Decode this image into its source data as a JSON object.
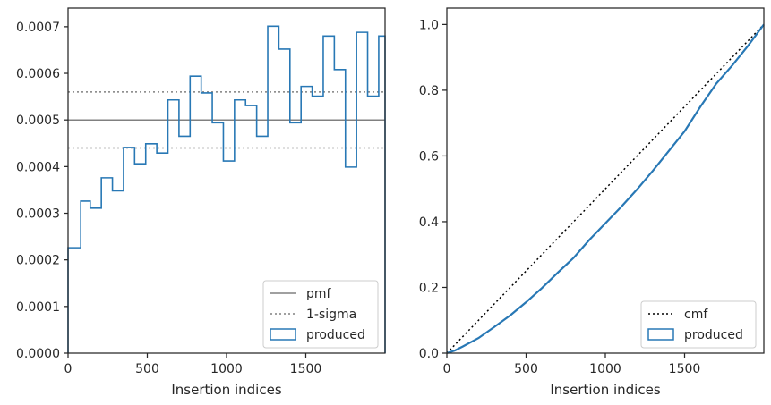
{
  "chart_data": [
    {
      "type": "step",
      "xlabel": "Insertion indices",
      "ylabel": "",
      "xlim": [
        0,
        2000
      ],
      "ylim": [
        0,
        0.00074
      ],
      "xticks": [
        0,
        500,
        1000,
        1500
      ],
      "xtick_labels": [
        "0",
        "500",
        "1000",
        "1500"
      ],
      "yticks": [
        0,
        0.0001,
        0.0002,
        0.0003,
        0.0004,
        0.0005,
        0.0006,
        0.0007
      ],
      "ytick_labels": [
        "0.0000",
        "0.0001",
        "0.0002",
        "0.0003",
        "0.0004",
        "0.0005",
        "0.0006",
        "0.0007"
      ],
      "bin_edges": [
        0,
        80,
        140,
        210,
        280,
        350,
        420,
        490,
        560,
        630,
        700,
        770,
        840,
        910,
        980,
        1050,
        1120,
        1190,
        1260,
        1330,
        1400,
        1470,
        1540,
        1610,
        1680,
        1750,
        1820,
        1890,
        1960,
        2000
      ],
      "series": [
        {
          "name": "produced",
          "kind": "histogram-step",
          "color": "#2878b5",
          "values": [
            0.000226,
            0.000326,
            0.000311,
            0.000376,
            0.000348,
            0.000441,
            0.000406,
            0.000449,
            0.000429,
            0.000543,
            0.000465,
            0.000594,
            0.000558,
            0.000494,
            0.000412,
            0.000543,
            0.000531,
            0.000465,
            0.000701,
            0.000652,
            0.000494,
            0.000572,
            0.000551,
            0.00068,
            0.000608,
            0.000399,
            0.000688,
            0.000551,
            0.00068
          ]
        }
      ],
      "reference_lines": [
        {
          "name": "pmf",
          "y": 0.0005,
          "style": "solid",
          "color": "#808080"
        },
        {
          "name": "1-sigma",
          "y": 0.00056,
          "style": "dotted",
          "color": "#808080"
        },
        {
          "name": "",
          "y": 0.00044,
          "style": "dotted",
          "color": "#808080"
        }
      ],
      "legend": {
        "position": "lower-right",
        "entries": [
          "pmf",
          "1-sigma",
          "produced"
        ]
      },
      "grid": false
    },
    {
      "type": "line",
      "xlabel": "Insertion indices",
      "ylabel": "",
      "xlim": [
        0,
        2000
      ],
      "ylim": [
        0,
        1.05
      ],
      "xticks": [
        0,
        500,
        1000,
        1500
      ],
      "xtick_labels": [
        "0",
        "500",
        "1000",
        "1500"
      ],
      "yticks": [
        0,
        0.2,
        0.4,
        0.6,
        0.8,
        1.0
      ],
      "ytick_labels": [
        "0.0",
        "0.2",
        "0.4",
        "0.6",
        "0.8",
        "1.0"
      ],
      "series": [
        {
          "name": "cmf",
          "style": "dotted",
          "color": "#000000",
          "x": [
            0,
            2000
          ],
          "y": [
            0,
            1.0
          ]
        },
        {
          "name": "produced",
          "style": "solid",
          "color": "#2878b5",
          "x": [
            0,
            50,
            100,
            200,
            300,
            400,
            500,
            600,
            700,
            800,
            900,
            1000,
            1100,
            1200,
            1300,
            1400,
            1500,
            1600,
            1700,
            1800,
            1900,
            2000
          ],
          "y": [
            0,
            0.008,
            0.02,
            0.046,
            0.08,
            0.115,
            0.155,
            0.198,
            0.245,
            0.29,
            0.345,
            0.395,
            0.445,
            0.498,
            0.555,
            0.615,
            0.675,
            0.75,
            0.82,
            0.875,
            0.935,
            1.0
          ]
        }
      ],
      "legend": {
        "position": "lower-right",
        "entries": [
          "cmf",
          "produced"
        ]
      },
      "grid": false
    }
  ]
}
